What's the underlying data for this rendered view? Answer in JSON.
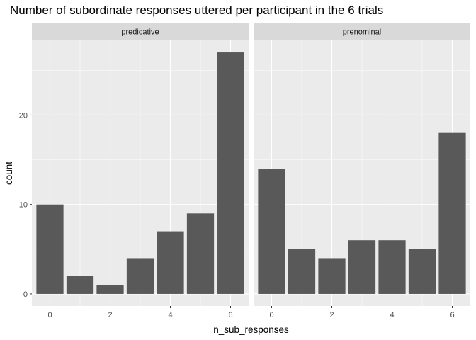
{
  "chart_data": {
    "type": "bar",
    "title": "Number of subordinate responses uttered per participant in the 6 trials",
    "xlabel": "n_sub_responses",
    "ylabel": "count",
    "x": [
      0,
      1,
      2,
      3,
      4,
      5,
      6
    ],
    "x_ticks": [
      0,
      2,
      4,
      6
    ],
    "y_ticks": [
      0,
      10,
      20
    ],
    "xlim": [
      -0.6,
      6.6
    ],
    "ylim": [
      -1.35,
      28.35
    ],
    "grid": true,
    "bar_color": "#595959",
    "panel_background": "#ebebeb",
    "strip_background": "#d9d9d9",
    "facets": [
      {
        "name": "predicative",
        "values": [
          10,
          2,
          1,
          4,
          7,
          9,
          27
        ]
      },
      {
        "name": "prenominal",
        "values": [
          14,
          5,
          4,
          6,
          6,
          5,
          18
        ]
      }
    ]
  }
}
